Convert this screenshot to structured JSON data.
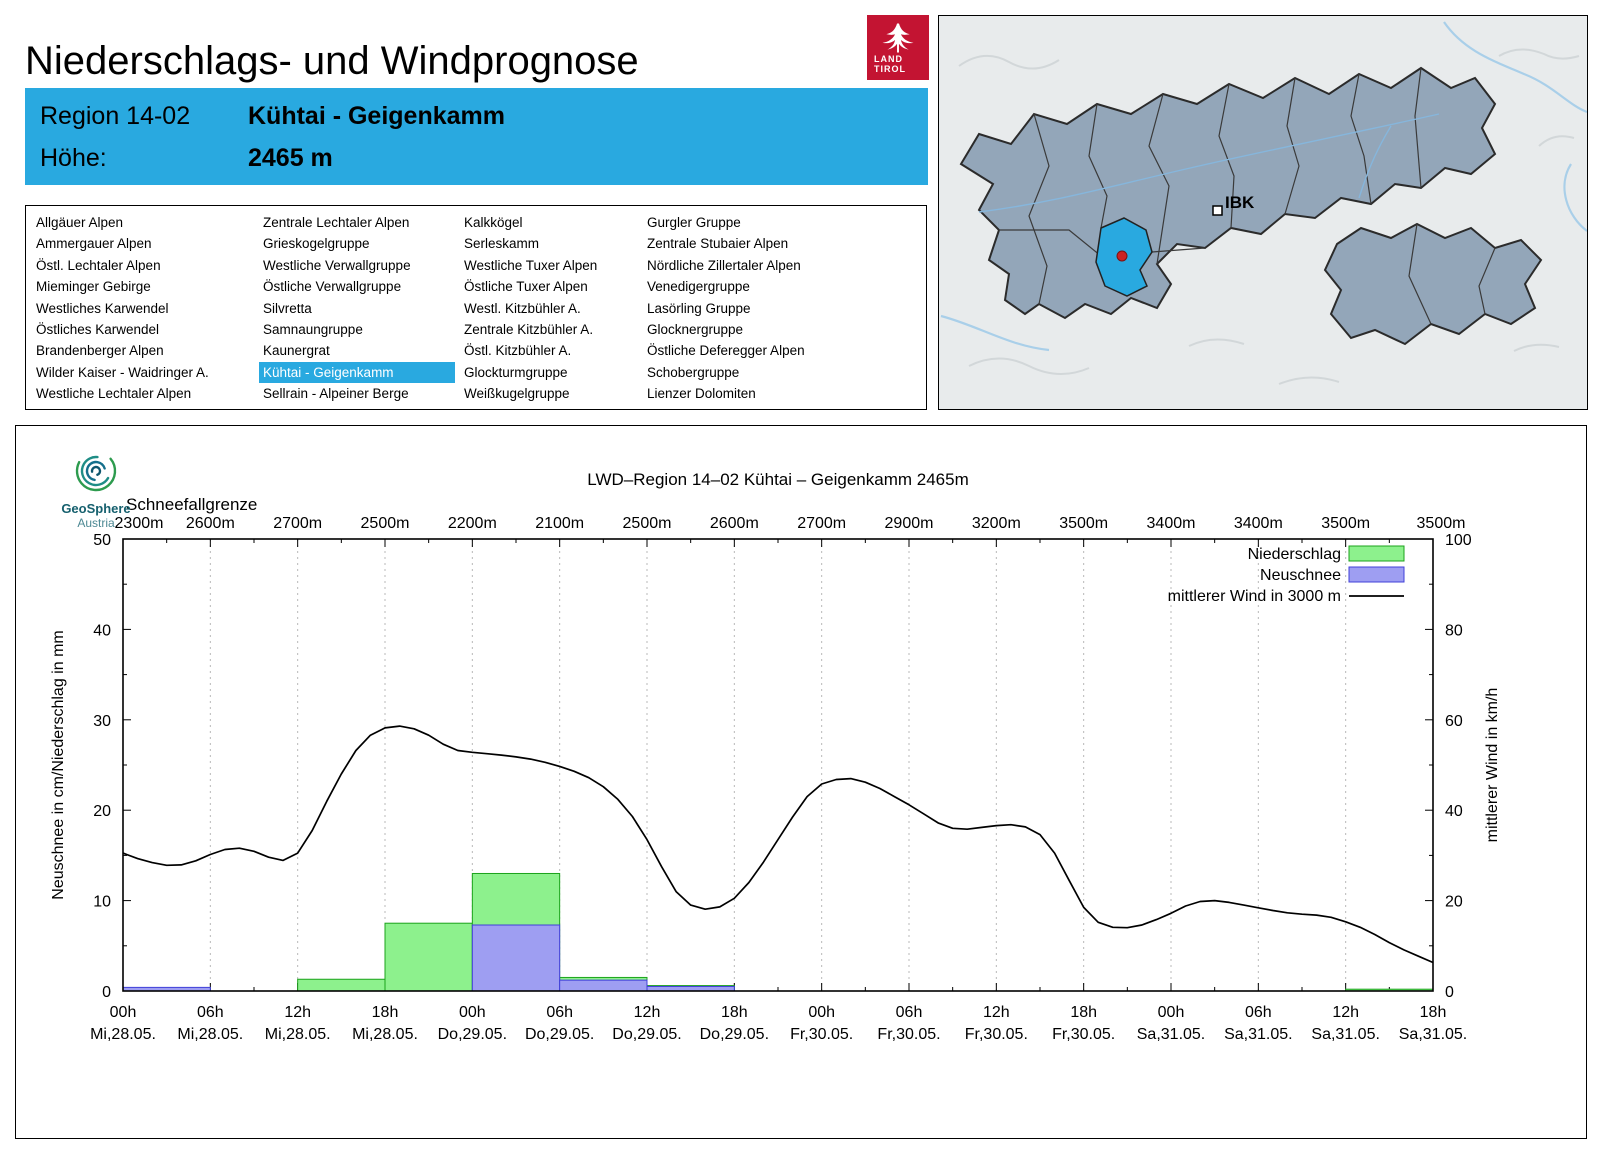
{
  "page": {
    "title": "Niederschlags- und Windprognose"
  },
  "land_tirol_logo": {
    "line1": "LAND",
    "line2": "TIROL",
    "color": "#c31432"
  },
  "header": {
    "region_label": "Region 14-02",
    "region_name": "Kühtai - Geigenkamm",
    "altitude_label": "Höhe:",
    "altitude_value": "2465 m",
    "background": "#29a9e0"
  },
  "region_list": {
    "selected": "Kühtai - Geigenkamm",
    "columns": [
      [
        "Allgäuer Alpen",
        "Ammergauer Alpen",
        "Östl. Lechtaler Alpen",
        "Mieminger Gebirge",
        "Westliches Karwendel",
        "Östliches Karwendel",
        "Brandenberger Alpen",
        "Wilder Kaiser - Waidringer A.",
        "Westliche Lechtaler Alpen"
      ],
      [
        "Zentrale Lechtaler Alpen",
        "Grieskogelgruppe",
        "Westliche Verwallgruppe",
        "Östliche Verwallgruppe",
        "Silvretta",
        "Samnaungruppe",
        "Kaunergrat",
        "Kühtai - Geigenkamm",
        "Sellrain - Alpeiner Berge"
      ],
      [
        "Kalkkögel",
        "Serleskamm",
        "Westliche Tuxer Alpen",
        "Östliche Tuxer Alpen",
        "Westl. Kitzbühler A.",
        "Zentrale Kitzbühler A.",
        "Östl. Kitzbühler A.",
        "Glockturmgruppe",
        "Weißkugelgruppe"
      ],
      [
        "Gurgler Gruppe",
        "Zentrale Stubaier Alpen",
        "Nördliche Zillertaler Alpen",
        "Venedigergruppe",
        "Lasörling Gruppe",
        "Glocknergruppe",
        "Östliche Deferegger Alpen",
        "Schobergruppe",
        "Lienzer Dolomiten"
      ]
    ]
  },
  "map": {
    "ibk_label": "IBK",
    "highlight_color": "#29a9e0",
    "region_fill": "#93a6b9",
    "marker_color": "#cc2222"
  },
  "chart": {
    "title": "LWD–Region 14–02 Kühtai – Geigenkamm 2465m",
    "snowline_label": "Schneefallgrenze",
    "ylabel_left": "Neuschnee in cm/Niederschlag in mm",
    "ylabel_right": "mittlerer Wind in km/h",
    "branding": {
      "name": "GeoSphere",
      "sub": "Austria"
    },
    "legend": [
      {
        "label": "Niederschlag",
        "type": "bar",
        "fill": "#8df18d",
        "stroke": "#1ca31c"
      },
      {
        "label": "Neuschnee",
        "type": "bar",
        "fill": "#9e9ef2",
        "stroke": "#4040d8"
      },
      {
        "label": "mittlerer Wind in 3000 m",
        "type": "line",
        "stroke": "#000000"
      }
    ]
  },
  "chart_data": {
    "type": "bar",
    "title": "LWD–Region 14–02 Kühtai – Geigenkamm 2465m",
    "x_range_hours": [
      0,
      90
    ],
    "ylim_left": [
      0,
      50
    ],
    "ylim_right": [
      0,
      100
    ],
    "yticks_left": [
      0,
      10,
      20,
      30,
      40,
      50
    ],
    "yticks_right": [
      0,
      20,
      40,
      60,
      80,
      100
    ],
    "ticks": [
      {
        "hour": 0,
        "time": "00h",
        "date": "Mi,28.05."
      },
      {
        "hour": 6,
        "time": "06h",
        "date": "Mi,28.05."
      },
      {
        "hour": 12,
        "time": "12h",
        "date": "Mi,28.05."
      },
      {
        "hour": 18,
        "time": "18h",
        "date": "Mi,28.05."
      },
      {
        "hour": 24,
        "time": "00h",
        "date": "Do,29.05."
      },
      {
        "hour": 30,
        "time": "06h",
        "date": "Do,29.05."
      },
      {
        "hour": 36,
        "time": "12h",
        "date": "Do,29.05."
      },
      {
        "hour": 42,
        "time": "18h",
        "date": "Do,29.05."
      },
      {
        "hour": 48,
        "time": "00h",
        "date": "Fr,30.05."
      },
      {
        "hour": 54,
        "time": "06h",
        "date": "Fr,30.05."
      },
      {
        "hour": 60,
        "time": "12h",
        "date": "Fr,30.05."
      },
      {
        "hour": 66,
        "time": "18h",
        "date": "Fr,30.05."
      },
      {
        "hour": 72,
        "time": "00h",
        "date": "Sa,31.05."
      },
      {
        "hour": 78,
        "time": "06h",
        "date": "Sa,31.05."
      },
      {
        "hour": 84,
        "time": "12h",
        "date": "Sa,31.05."
      },
      {
        "hour": 90,
        "time": "18h",
        "date": "Sa,31.05."
      }
    ],
    "snowline": [
      "2300m",
      "2600m",
      "2700m",
      "2500m",
      "2200m",
      "2100m",
      "2500m",
      "2600m",
      "2700m",
      "2900m",
      "3200m",
      "3500m",
      "3400m",
      "3400m",
      "3500m",
      "3500m"
    ],
    "bar_width_hours": 6,
    "niederschlag_mm": [
      0,
      0,
      1.3,
      7.5,
      13,
      1.5,
      0.6,
      0,
      0,
      0,
      0,
      0,
      0,
      0,
      0.2
    ],
    "neuschnee_cm": [
      0.4,
      0,
      0,
      0,
      7.3,
      1.2,
      0.5,
      0,
      0,
      0,
      0,
      0,
      0,
      0,
      0
    ],
    "wind_kmh": [
      [
        0,
        30.5
      ],
      [
        1,
        29.3
      ],
      [
        2,
        28.4
      ],
      [
        3,
        27.8
      ],
      [
        4,
        27.9
      ],
      [
        5,
        28.8
      ],
      [
        6,
        30.2
      ],
      [
        7,
        31.3
      ],
      [
        8,
        31.6
      ],
      [
        9,
        30.9
      ],
      [
        10,
        29.6
      ],
      [
        11,
        28.9
      ],
      [
        12,
        30.5
      ],
      [
        13,
        35.5
      ],
      [
        14,
        42
      ],
      [
        15,
        48
      ],
      [
        16,
        53.2
      ],
      [
        17,
        56.6
      ],
      [
        18,
        58.2
      ],
      [
        19,
        58.6
      ],
      [
        20,
        58
      ],
      [
        21,
        56.6
      ],
      [
        22,
        54.6
      ],
      [
        23,
        53.2
      ],
      [
        24,
        52.8
      ],
      [
        25,
        52.5
      ],
      [
        26,
        52.2
      ],
      [
        27,
        51.8
      ],
      [
        28,
        51.3
      ],
      [
        29,
        50.6
      ],
      [
        30,
        49.7
      ],
      [
        31,
        48.6
      ],
      [
        32,
        47.2
      ],
      [
        33,
        45.2
      ],
      [
        34,
        42.4
      ],
      [
        35,
        38.6
      ],
      [
        36,
        33.5
      ],
      [
        37,
        27.5
      ],
      [
        38,
        22
      ],
      [
        39,
        19
      ],
      [
        40,
        18.1
      ],
      [
        41,
        18.6
      ],
      [
        42,
        20.5
      ],
      [
        43,
        24
      ],
      [
        44,
        28.5
      ],
      [
        45,
        33.5
      ],
      [
        46,
        38.5
      ],
      [
        47,
        43
      ],
      [
        48,
        45.8
      ],
      [
        49,
        46.8
      ],
      [
        50,
        47
      ],
      [
        51,
        46.2
      ],
      [
        52,
        44.8
      ],
      [
        53,
        43
      ],
      [
        54,
        41.2
      ],
      [
        55,
        39.2
      ],
      [
        56,
        37.2
      ],
      [
        57,
        36
      ],
      [
        58,
        35.8
      ],
      [
        59,
        36.2
      ],
      [
        60,
        36.6
      ],
      [
        61,
        36.8
      ],
      [
        62,
        36.3
      ],
      [
        63,
        34.6
      ],
      [
        64,
        30.5
      ],
      [
        65,
        24.5
      ],
      [
        66,
        18.5
      ],
      [
        67,
        15.2
      ],
      [
        68,
        14.1
      ],
      [
        69,
        14
      ],
      [
        70,
        14.6
      ],
      [
        71,
        15.8
      ],
      [
        72,
        17.2
      ],
      [
        73,
        18.8
      ],
      [
        74,
        19.8
      ],
      [
        75,
        20
      ],
      [
        76,
        19.6
      ],
      [
        77,
        19
      ],
      [
        78,
        18.4
      ],
      [
        79,
        17.8
      ],
      [
        80,
        17.3
      ],
      [
        81,
        17
      ],
      [
        82,
        16.8
      ],
      [
        83,
        16.3
      ],
      [
        84,
        15.3
      ],
      [
        85,
        14.1
      ],
      [
        86,
        12.5
      ],
      [
        87,
        10.7
      ],
      [
        88,
        9.1
      ],
      [
        89,
        7.7
      ],
      [
        90,
        6.3
      ]
    ]
  }
}
